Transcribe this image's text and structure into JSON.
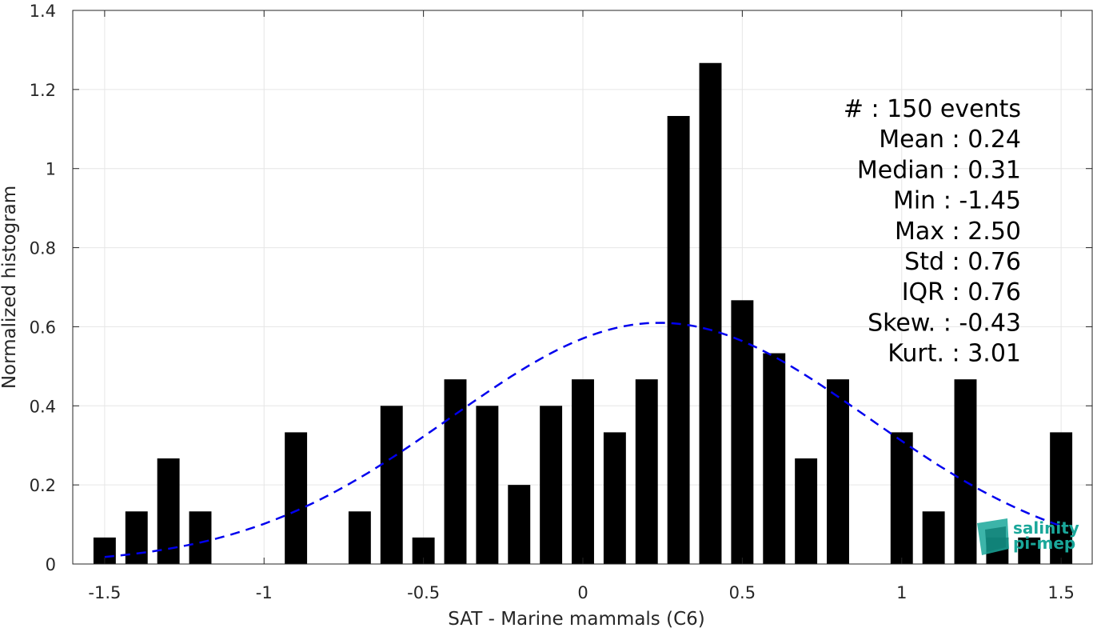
{
  "chart_data": {
    "type": "bar",
    "xlabel": "SAT - Marine mammals (C6)",
    "ylabel": "Normalized histogram",
    "xlim": [
      -1.6,
      1.6
    ],
    "ylim": [
      0,
      1.4
    ],
    "x_ticks": [
      -1.5,
      -1,
      -0.5,
      0,
      0.5,
      1,
      1.5
    ],
    "x_tick_labels": [
      "-1.5",
      "-1",
      "-0.5",
      "0",
      "0.5",
      "1",
      "1.5"
    ],
    "y_ticks": [
      0,
      0.2,
      0.4,
      0.6,
      0.8,
      1,
      1.2,
      1.4
    ],
    "y_tick_labels": [
      "0",
      "0.2",
      "0.4",
      "0.6",
      "0.8",
      "1",
      "1.2",
      "1.4"
    ],
    "grid": true,
    "bars": {
      "x": [
        -1.5,
        -1.4,
        -1.3,
        -1.2,
        -1.1,
        -1.0,
        -0.9,
        -0.8,
        -0.7,
        -0.6,
        -0.5,
        -0.4,
        -0.3,
        -0.2,
        -0.1,
        0.0,
        0.1,
        0.2,
        0.3,
        0.4,
        0.5,
        0.6,
        0.7,
        0.8,
        0.9,
        1.0,
        1.1,
        1.2,
        1.3,
        1.4,
        1.5
      ],
      "values": [
        0.067,
        0.133,
        0.267,
        0.133,
        0,
        0,
        0.333,
        0,
        0.133,
        0.4,
        0.067,
        0.467,
        0.4,
        0.2,
        0.4,
        0.467,
        0.333,
        0.467,
        1.133,
        1.267,
        0.667,
        0.533,
        0.267,
        0.467,
        0,
        0.333,
        0.133,
        0.467,
        0.067,
        0.067,
        0.333
      ],
      "bar_width": 0.07,
      "color": "#000000"
    },
    "fit_curve": {
      "style": "dashed",
      "color": "#0000ee",
      "mean": 0.24,
      "std": 0.655,
      "amplitude": 0.61,
      "x_range": [
        -1.5,
        1.5
      ]
    },
    "stats": [
      {
        "label": "#  : 150 events"
      },
      {
        "label": "Mean : 0.24"
      },
      {
        "label": "Median : 0.31"
      },
      {
        "label": "Min : -1.45"
      },
      {
        "label": "Max : 2.50"
      },
      {
        "label": "Std : 0.76"
      },
      {
        "label": "IQR : 0.76"
      },
      {
        "label": "Skew. : -0.43"
      },
      {
        "label": "Kurt. : 3.01"
      }
    ],
    "logo": {
      "line1": "salinity",
      "line2": "pi-mep"
    }
  }
}
